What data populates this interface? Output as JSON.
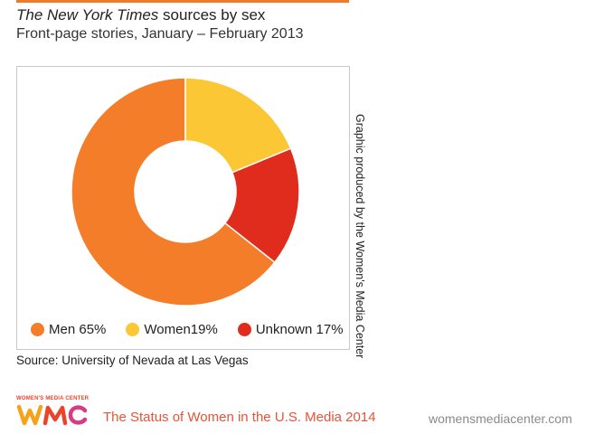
{
  "header": {
    "title_italic": "The New York Times",
    "title_rest": " sources by sex",
    "subtitle": "Front-page stories, January – February 2013"
  },
  "chart_data": {
    "type": "pie",
    "style": "donut",
    "slices": [
      {
        "label": "Men",
        "value": 65,
        "legend": "Men 65%",
        "color": "#f47d2a"
      },
      {
        "label": "Women",
        "value": 19,
        "legend": "Women19%",
        "color": "#fbc735"
      },
      {
        "label": "Unknown",
        "value": 17,
        "legend": "Unknown 17%",
        "color": "#df2c1c"
      }
    ],
    "legend_position": "bottom"
  },
  "credit": "Graphic produced by the Women's Media Center",
  "source": "Source: University of Nevada at Las Vegas",
  "footer": {
    "logo_text": "WOMEN'S MEDIA CENTER",
    "logo_letters": "WMC",
    "report_title": "The Status of Women in the U.S. Media 2014",
    "url": "womensmediacenter.com"
  },
  "colors": {
    "accent": "#f07a2a",
    "brand_red": "#e2553a"
  }
}
